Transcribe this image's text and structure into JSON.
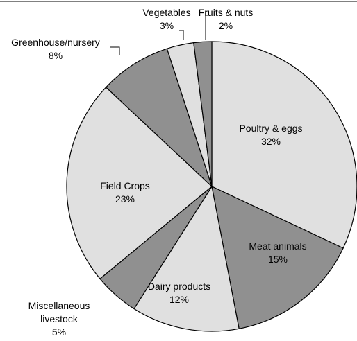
{
  "chart_data": {
    "type": "pie",
    "categories": [
      "Poultry & eggs",
      "Meat animals",
      "Dairy products",
      "Miscellaneous livestock",
      "Field Crops",
      "Greenhouse/nursery",
      "Vegetables",
      "Fruits & nuts"
    ],
    "values": [
      32,
      15,
      12,
      5,
      23,
      8,
      3,
      2
    ],
    "value_labels": [
      "32%",
      "15%",
      "12%",
      "5%",
      "23%",
      "8%",
      "3%",
      "2%"
    ],
    "colors": [
      "#e0e0e0",
      "#909090",
      "#e0e0e0",
      "#909090",
      "#e0e0e0",
      "#909090",
      "#e0e0e0",
      "#909090"
    ]
  }
}
